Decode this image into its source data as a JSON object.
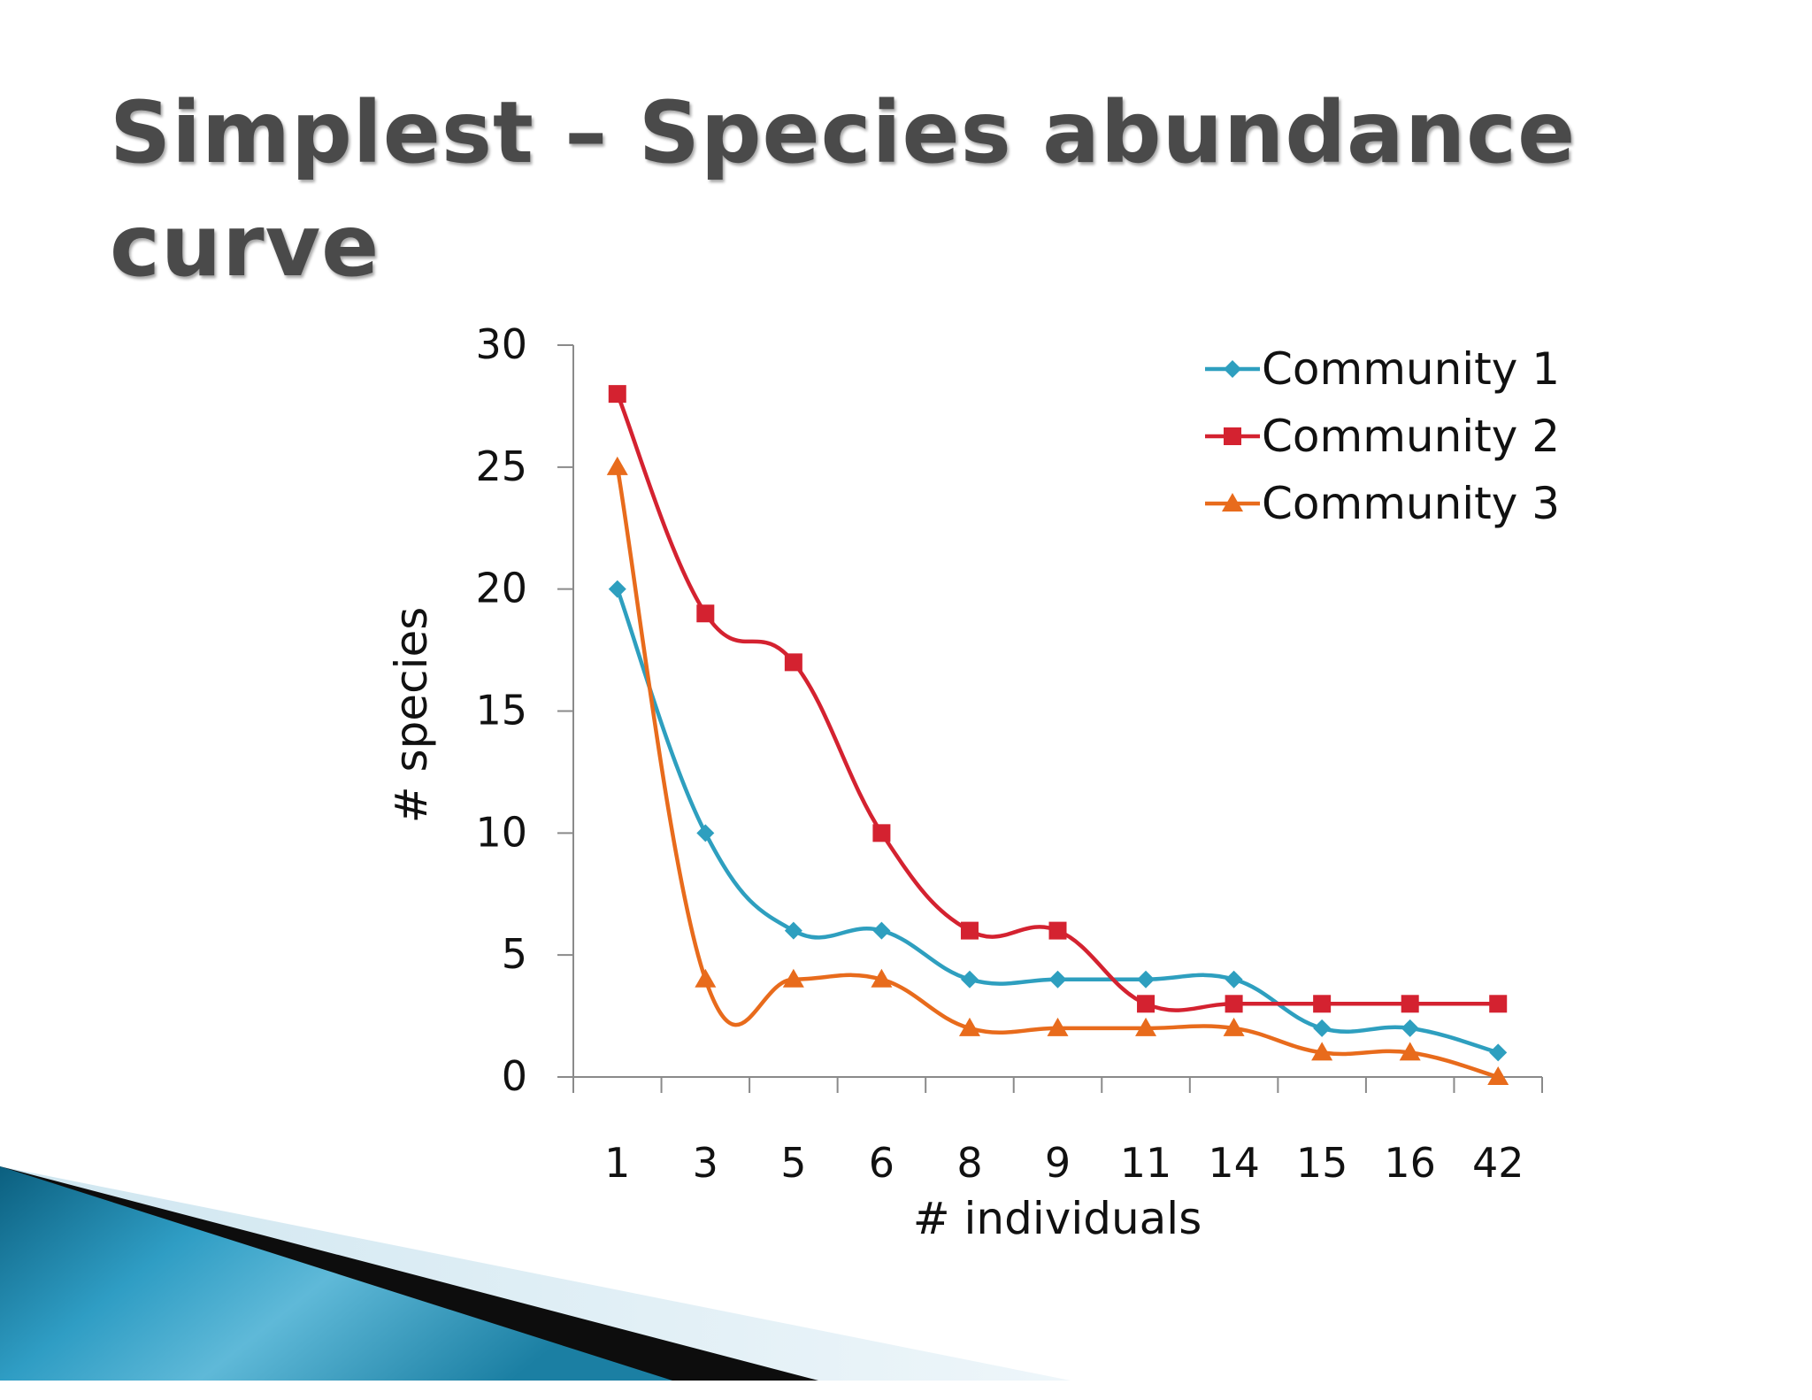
{
  "slide": {
    "title": "Simplest – Species abundance curve"
  },
  "chart_data": {
    "type": "line",
    "categories": [
      "1",
      "3",
      "5",
      "6",
      "8",
      "9",
      "11",
      "14",
      "15",
      "16",
      "42"
    ],
    "xlabel": "# individuals",
    "ylabel": "# species",
    "ylim": [
      0,
      30
    ],
    "yticks": [
      0,
      5,
      10,
      15,
      20,
      25,
      30
    ],
    "grid": false,
    "legend_position": "top-right",
    "smooth": true,
    "series": [
      {
        "name": "Community 1",
        "color": "#2e9fbf",
        "marker": "diamond",
        "values": [
          20,
          10,
          6,
          6,
          4,
          4,
          4,
          4,
          2,
          2,
          1
        ]
      },
      {
        "name": "Community 2",
        "color": "#d42230",
        "marker": "square",
        "values": [
          28,
          19,
          17,
          10,
          6,
          6,
          3,
          3,
          3,
          3,
          3
        ]
      },
      {
        "name": "Community 3",
        "color": "#e86b1c",
        "marker": "triangle",
        "values": [
          25,
          4,
          4,
          4,
          2,
          2,
          2,
          2,
          1,
          1,
          0
        ]
      }
    ]
  }
}
